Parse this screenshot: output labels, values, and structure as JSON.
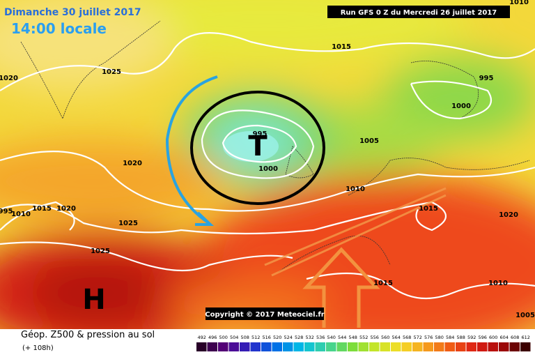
{
  "header": {
    "date": "Dimanche 30 juillet 2017",
    "time": "14:00 locale",
    "run": "Run GFS 0 Z du Mercredi 26 juillet 2017"
  },
  "map": {
    "low": "T",
    "high": "H",
    "isobar_labels": [
      "1020",
      "1025",
      "1015",
      "995",
      "1000",
      "995",
      "1000",
      "1005",
      "1010",
      "1020",
      "1025",
      "1025",
      "1015",
      "1020",
      "1010",
      "1015",
      "1005",
      "995",
      "1010",
      "1015",
      "1020",
      "1010"
    ],
    "copyright": "Copyright © 2017 Meteociel.fr"
  },
  "legend": {
    "title": "Géop. Z500 & pression au sol",
    "lead": "(+ 108h)",
    "scale": [
      492,
      496,
      500,
      504,
      508,
      512,
      516,
      520,
      524,
      528,
      532,
      536,
      540,
      544,
      548,
      552,
      556,
      560,
      564,
      568,
      572,
      576,
      580,
      584,
      588,
      592,
      596,
      600,
      604,
      608,
      612
    ]
  }
}
